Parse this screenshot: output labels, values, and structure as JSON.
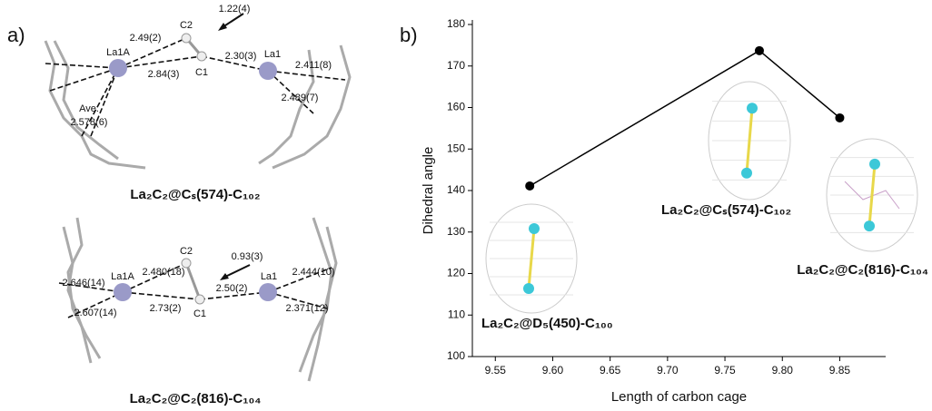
{
  "panel_a": {
    "label": "a)",
    "structures": [
      {
        "title": "La₂C₂@Cₛ(574)-C₁₀₂",
        "labels": [
          "C2",
          "1.22(4)",
          "La1A",
          "2.49(2)",
          "2.30(3)",
          "La1",
          "2.411(8)",
          "2.84(3)",
          "C1",
          "Ave.",
          "2.578(6)",
          "2.489(7)"
        ]
      },
      {
        "title": "La₂C₂@C₂(816)-C₁₀₄",
        "labels": [
          "C2",
          "0.93(3)",
          "La1A",
          "2.480(18)",
          "La1",
          "2.444(10)",
          "2.646(14)",
          "2.50(2)",
          "2.371(12)",
          "2.73(2)",
          "C1",
          "2.607(14)"
        ]
      }
    ]
  },
  "chart_data": {
    "type": "line",
    "panel_label": "b)",
    "xlabel": "Length of carbon cage",
    "ylabel": "Dihedral angle",
    "x": [
      9.58,
      9.78,
      9.85
    ],
    "values": [
      141.1,
      173.7,
      157.5
    ],
    "color": "#000000",
    "xlim": [
      9.53,
      9.89
    ],
    "ylim": [
      100,
      180
    ],
    "xticks": [
      9.55,
      {
        "value": 9.6,
        "label": "9.60"
      },
      9.65,
      {
        "value": 9.7,
        "label": "9.70"
      },
      9.75,
      {
        "value": 9.8,
        "label": "9.80"
      },
      9.85
    ],
    "yticks": [
      100,
      110,
      120,
      130,
      140,
      150,
      160,
      170,
      180
    ],
    "annotations": [
      "La₂C₂@D₅(450)-C₁₀₀",
      "La₂C₂@Cₛ(574)-C₁₀₂",
      "La₂C₂@C₂(816)-C₁₀₄"
    ]
  }
}
